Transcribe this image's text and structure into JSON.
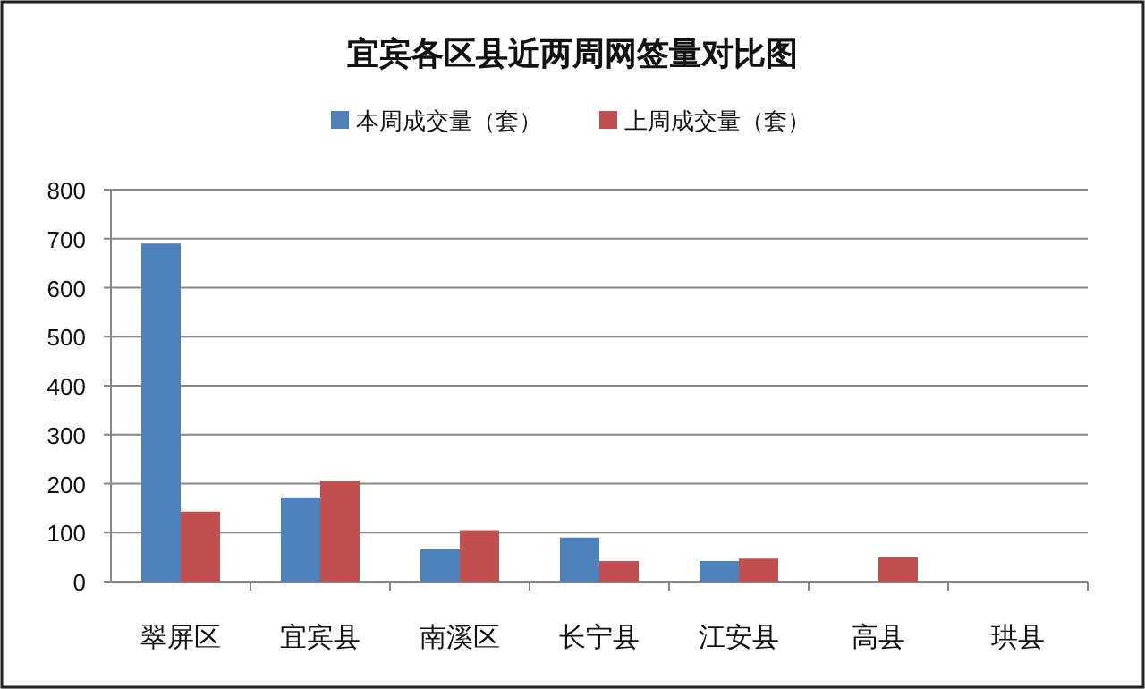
{
  "chart_data": {
    "type": "bar",
    "title": "宜宾各区县近两周网签量对比图",
    "categories": [
      "翠屏区",
      "宜宾县",
      "南溪区",
      "长宁县",
      "江安县",
      "高县",
      "珙县"
    ],
    "series": [
      {
        "name": "本周成交量（套）",
        "color": "#4f81bd",
        "values": [
          690,
          172,
          66,
          90,
          42,
          null,
          null
        ]
      },
      {
        "name": "上周成交量（套）",
        "color": "#c0504d",
        "values": [
          143,
          206,
          105,
          42,
          47,
          50,
          null
        ]
      }
    ],
    "ylim": [
      0,
      800
    ],
    "yticks": [
      0,
      100,
      200,
      300,
      400,
      500,
      600,
      700,
      800
    ],
    "grid": "y",
    "legend": "top"
  }
}
